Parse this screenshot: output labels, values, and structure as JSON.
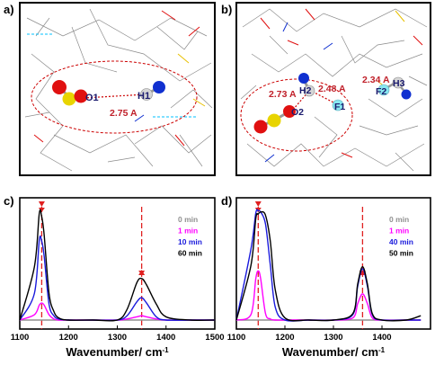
{
  "panels": {
    "a": {
      "label": "a)",
      "atoms": [
        "O1",
        "H1"
      ],
      "distance": "2.75 A"
    },
    "b": {
      "label": "b)",
      "atoms": [
        "H2",
        "O2",
        "F1",
        "F2",
        "H3"
      ],
      "distances": [
        "2.73 A",
        "2.48 A",
        "2.34 A"
      ]
    },
    "c": {
      "label": "c)"
    },
    "d": {
      "label": "d)"
    }
  },
  "colors": {
    "oxygen": "#e01010",
    "sulfur": "#e8d400",
    "hydrogen": "#d0d0d0",
    "nitrogen": "#1030d0",
    "fluorine": "#88e8f0",
    "distance_text": "#c0202a",
    "guide": "#e02020",
    "frame": "#000000"
  },
  "chart_data": [
    {
      "type": "line",
      "panel": "c",
      "xlabel": "Wavenumber/ cm-1",
      "ylabel": "",
      "xlim": [
        1100,
        1500
      ],
      "xticks": [
        1100,
        1200,
        1300,
        1400,
        1500
      ],
      "grid": false,
      "legend_position": "top-right",
      "marker_wavenumbers": [
        1145,
        1350
      ],
      "series": [
        {
          "name": "0 min",
          "color": "#909090",
          "x": [
            1100,
            1130,
            1140,
            1145,
            1150,
            1160,
            1170,
            1180,
            1200,
            1250,
            1300,
            1320,
            1340,
            1350,
            1360,
            1380,
            1400,
            1450,
            1500
          ],
          "values": [
            0.0,
            0.0,
            0.0,
            0.0,
            0.0,
            0.0,
            0.0,
            0.0,
            0.0,
            0.0,
            0.0,
            0.0,
            0.0,
            0.0,
            0.0,
            0.0,
            0.0,
            0.0,
            0.0
          ]
        },
        {
          "name": "1 min",
          "color": "#ff00ff",
          "x": [
            1100,
            1130,
            1140,
            1145,
            1150,
            1160,
            1170,
            1180,
            1200,
            1250,
            1300,
            1320,
            1340,
            1350,
            1360,
            1380,
            1400,
            1450,
            1500
          ],
          "values": [
            0.0,
            0.05,
            0.14,
            0.16,
            0.14,
            0.05,
            0.01,
            0.0,
            0.0,
            0.0,
            0.0,
            0.01,
            0.03,
            0.04,
            0.03,
            0.01,
            0.0,
            0.0,
            0.0
          ]
        },
        {
          "name": "10 min",
          "color": "#1a1adc",
          "x": [
            1100,
            1130,
            1140,
            1145,
            1150,
            1160,
            1170,
            1180,
            1200,
            1250,
            1300,
            1320,
            1340,
            1350,
            1360,
            1380,
            1400,
            1450,
            1500
          ],
          "values": [
            0.0,
            0.25,
            0.75,
            0.74,
            0.6,
            0.15,
            0.04,
            0.01,
            0.0,
            0.0,
            0.0,
            0.04,
            0.17,
            0.21,
            0.16,
            0.03,
            0.0,
            0.0,
            0.0
          ]
        },
        {
          "name": "60 min",
          "color": "#000000",
          "x": [
            1100,
            1130,
            1140,
            1145,
            1150,
            1160,
            1170,
            1180,
            1200,
            1250,
            1300,
            1320,
            1340,
            1350,
            1360,
            1380,
            1400,
            1450,
            1500
          ],
          "values": [
            0.0,
            0.5,
            1.0,
            0.97,
            0.8,
            0.25,
            0.08,
            0.02,
            0.0,
            0.0,
            0.0,
            0.1,
            0.35,
            0.39,
            0.33,
            0.15,
            0.03,
            0.0,
            0.0
          ]
        }
      ]
    },
    {
      "type": "line",
      "panel": "d",
      "xlabel": "Wavenumber/ cm-1",
      "ylabel": "",
      "xlim": [
        1100,
        1500
      ],
      "xticks": [
        1100,
        1200,
        1300,
        1400
      ],
      "grid": false,
      "legend_position": "top-right",
      "marker_wavenumbers": [
        1145,
        1360
      ],
      "series": [
        {
          "name": "0 min",
          "color": "#909090",
          "x": [
            1100,
            1130,
            1140,
            1145,
            1150,
            1160,
            1170,
            1180,
            1200,
            1250,
            1300,
            1340,
            1350,
            1360,
            1370,
            1380,
            1400,
            1450,
            1480
          ],
          "values": [
            0.0,
            0.0,
            0.0,
            0.0,
            0.0,
            0.0,
            0.0,
            0.0,
            0.0,
            0.0,
            0.0,
            0.0,
            0.0,
            0.0,
            0.0,
            0.0,
            0.0,
            0.0,
            0.0
          ]
        },
        {
          "name": "1 min",
          "color": "#ff00ff",
          "x": [
            1100,
            1130,
            1140,
            1145,
            1150,
            1160,
            1170,
            1180,
            1200,
            1250,
            1300,
            1340,
            1350,
            1360,
            1370,
            1380,
            1400,
            1450,
            1480
          ],
          "values": [
            0.0,
            0.05,
            0.38,
            0.45,
            0.38,
            0.06,
            0.01,
            0.0,
            0.0,
            0.0,
            0.0,
            0.02,
            0.15,
            0.24,
            0.15,
            0.02,
            0.0,
            0.0,
            0.0
          ]
        },
        {
          "name": "40 min",
          "color": "#1a1adc",
          "x": [
            1100,
            1130,
            1140,
            1145,
            1150,
            1160,
            1170,
            1180,
            1200,
            1250,
            1300,
            1340,
            1350,
            1360,
            1370,
            1380,
            1400,
            1450,
            1480
          ],
          "values": [
            0.0,
            0.65,
            0.98,
            1.0,
            0.99,
            0.88,
            0.5,
            0.12,
            0.0,
            0.0,
            0.0,
            0.05,
            0.31,
            0.47,
            0.31,
            0.05,
            0.0,
            0.0,
            0.0
          ]
        },
        {
          "name": "50 min",
          "color": "#000000",
          "x": [
            1100,
            1130,
            1140,
            1145,
            1150,
            1160,
            1170,
            1180,
            1200,
            1250,
            1300,
            1340,
            1350,
            1360,
            1370,
            1380,
            1400,
            1450,
            1480
          ],
          "values": [
            0.0,
            0.5,
            0.93,
            0.97,
            0.99,
            0.96,
            0.72,
            0.28,
            0.02,
            0.0,
            0.0,
            0.06,
            0.33,
            0.49,
            0.33,
            0.06,
            0.0,
            0.0,
            0.04
          ]
        }
      ]
    }
  ]
}
